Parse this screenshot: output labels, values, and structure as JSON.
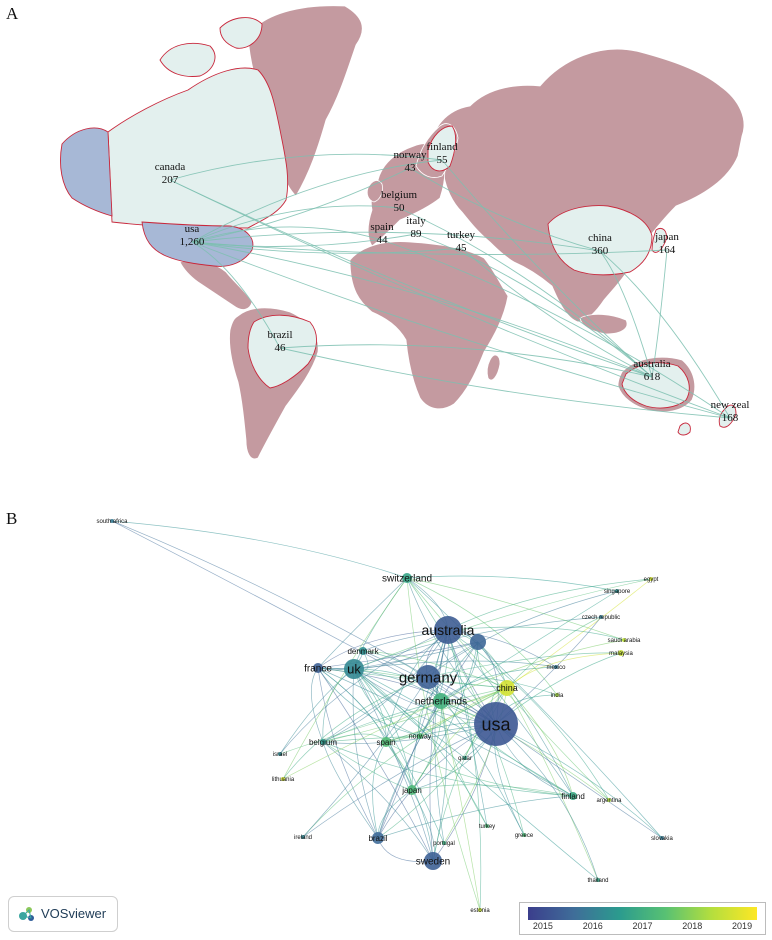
{
  "panel_a_label": "A",
  "panel_b_label": "B",
  "map_countries": [
    {
      "id": "canada",
      "name": "canada",
      "value": "207"
    },
    {
      "id": "usa",
      "name": "usa",
      "value": "1,260"
    },
    {
      "id": "norway",
      "name": "norway",
      "value": "43"
    },
    {
      "id": "finland",
      "name": "finland",
      "value": "55"
    },
    {
      "id": "belgium",
      "name": "belgium",
      "value": "50"
    },
    {
      "id": "spain",
      "name": "spain",
      "value": "44"
    },
    {
      "id": "italy",
      "name": "italy",
      "value": "89"
    },
    {
      "id": "turkey",
      "name": "turkey",
      "value": "45"
    },
    {
      "id": "china",
      "name": "china",
      "value": "360"
    },
    {
      "id": "japan",
      "name": "japan",
      "value": "164"
    },
    {
      "id": "brazil",
      "name": "brazil",
      "value": "46"
    },
    {
      "id": "australia",
      "name": "australia",
      "value": "618"
    },
    {
      "id": "new-zealand",
      "name": "new zeal",
      "value": "168"
    }
  ],
  "network_nodes": [
    {
      "id": "usa",
      "label": "usa",
      "year": 2015.2
    },
    {
      "id": "australia",
      "label": "australia",
      "year": 2015.3
    },
    {
      "id": "germany",
      "label": "germany",
      "year": 2015.4
    },
    {
      "id": "uk",
      "label": "uk",
      "year": 2016.3
    },
    {
      "id": "france",
      "label": "france",
      "year": 2015.4
    },
    {
      "id": "switzerland",
      "label": "switzerland",
      "year": 2017.0
    },
    {
      "id": "netherlands",
      "label": "netherlands",
      "year": 2017.3
    },
    {
      "id": "china",
      "label": "china",
      "year": 2018.9
    },
    {
      "id": "denmark",
      "label": "denmark",
      "year": 2016.5
    },
    {
      "id": "belgium",
      "label": "belgium",
      "year": 2016.8
    },
    {
      "id": "spain",
      "label": "spain",
      "year": 2017.6
    },
    {
      "id": "norway",
      "label": "norway",
      "year": 2017.6
    },
    {
      "id": "japan",
      "label": "japan",
      "year": 2017.5
    },
    {
      "id": "brazil",
      "label": "brazil",
      "year": 2015.6
    },
    {
      "id": "sweden",
      "label": "sweden",
      "year": 2015.4
    },
    {
      "id": "finland",
      "label": "finland",
      "year": 2017.1
    },
    {
      "id": "canada",
      "label": "",
      "year": 2015.5
    },
    {
      "id": "south-africa",
      "label": "south africa",
      "year": 2016.0
    },
    {
      "id": "egypt",
      "label": "egypt",
      "year": 2018.9
    },
    {
      "id": "singapore",
      "label": "singapore",
      "year": 2016.5
    },
    {
      "id": "czech-republic",
      "label": "czech republic",
      "year": 2016.0
    },
    {
      "id": "saudi-arabia",
      "label": "saudi arabia",
      "year": 2018.7
    },
    {
      "id": "malaysia",
      "label": "malaysia",
      "year": 2018.8
    },
    {
      "id": "mexico",
      "label": "mexico",
      "year": 2016.0
    },
    {
      "id": "india",
      "label": "india",
      "year": 2018.5
    },
    {
      "id": "israel",
      "label": "israel",
      "year": 2016.3
    },
    {
      "id": "lithuania",
      "label": "lithuania",
      "year": 2018.9
    },
    {
      "id": "qatar",
      "label": "qatar",
      "year": 2017.0
    },
    {
      "id": "argentina",
      "label": "argentina",
      "year": 2018.6
    },
    {
      "id": "ireland",
      "label": "ireland",
      "year": 2016.3
    },
    {
      "id": "turkey",
      "label": "turkey",
      "year": 2017.5
    },
    {
      "id": "greece",
      "label": "greece",
      "year": 2017.5
    },
    {
      "id": "portugal",
      "label": "portugal",
      "year": 2017.2
    },
    {
      "id": "slovakia",
      "label": "slovakia",
      "year": 2016.0
    },
    {
      "id": "thailand",
      "label": "thailand",
      "year": 2017.0
    },
    {
      "id": "estonia",
      "label": "estonia",
      "year": 2018.8
    }
  ],
  "vosviewer_label": "VOSviewer",
  "colorbar": {
    "ticks": [
      "2015",
      "2016",
      "2017",
      "2018",
      "2019"
    ],
    "min": 2014.7,
    "max": 2019.3
  }
}
